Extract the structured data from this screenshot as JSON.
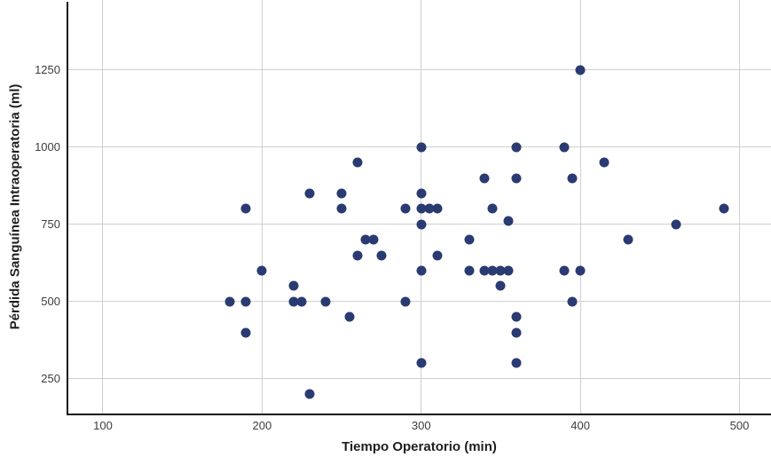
{
  "chart_data": {
    "type": "scatter",
    "title": "",
    "xlabel": "Tiempo Operatorio (min)",
    "ylabel": "Pérdida Sanguínea Intraoperatoria (ml)",
    "x_ticks": [
      100,
      200,
      300,
      400,
      500
    ],
    "y_ticks": [
      250,
      500,
      750,
      1000,
      1250
    ],
    "xlim": [
      77.7,
      519.8
    ],
    "ylim": [
      134,
      1477
    ],
    "grid": true,
    "legend_position": "none",
    "point_color": "#2a3b72",
    "points": [
      [
        180,
        500
      ],
      [
        190,
        400
      ],
      [
        190,
        500
      ],
      [
        190,
        800
      ],
      [
        200,
        600
      ],
      [
        220,
        500
      ],
      [
        220,
        550
      ],
      [
        225,
        500
      ],
      [
        230,
        200
      ],
      [
        230,
        850
      ],
      [
        240,
        500
      ],
      [
        250,
        800
      ],
      [
        250,
        850
      ],
      [
        255,
        450
      ],
      [
        260,
        650
      ],
      [
        260,
        950
      ],
      [
        265,
        700
      ],
      [
        270,
        700
      ],
      [
        275,
        650
      ],
      [
        290,
        500
      ],
      [
        290,
        800
      ],
      [
        300,
        300
      ],
      [
        300,
        600
      ],
      [
        300,
        750
      ],
      [
        300,
        800
      ],
      [
        300,
        850
      ],
      [
        300,
        1000
      ],
      [
        305,
        800
      ],
      [
        310,
        650
      ],
      [
        310,
        800
      ],
      [
        330,
        600
      ],
      [
        330,
        700
      ],
      [
        340,
        600
      ],
      [
        340,
        900
      ],
      [
        345,
        600
      ],
      [
        345,
        800
      ],
      [
        350,
        550
      ],
      [
        350,
        600
      ],
      [
        355,
        600
      ],
      [
        355,
        760
      ],
      [
        360,
        300
      ],
      [
        360,
        400
      ],
      [
        360,
        450
      ],
      [
        360,
        900
      ],
      [
        360,
        1000
      ],
      [
        390,
        600
      ],
      [
        390,
        1000
      ],
      [
        395,
        500
      ],
      [
        395,
        900
      ],
      [
        400,
        600
      ],
      [
        400,
        1250
      ],
      [
        415,
        950
      ],
      [
        430,
        700
      ],
      [
        460,
        750
      ],
      [
        490,
        800
      ]
    ]
  },
  "colors": {
    "point": "#2a3b72",
    "grid": "#cfcfcf",
    "axis": "#171717",
    "tick_text": "#3d3d3d",
    "title_text": "#1f1f1f",
    "background": "#ffffff"
  }
}
